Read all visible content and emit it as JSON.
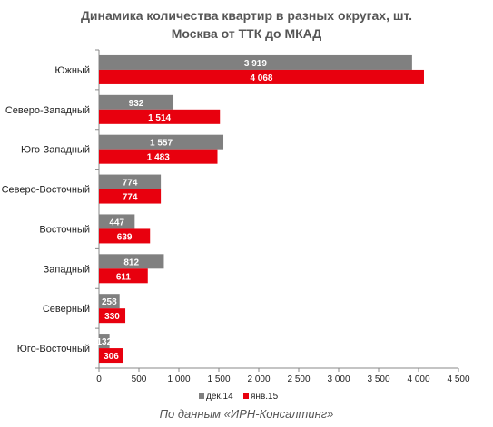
{
  "title_line1": "Динамика количества квартир в разных округах, шт.",
  "title_line2": "Москва от ТТК до МКАД",
  "source": "По данным «ИРН-Консалтинг»",
  "colors": {
    "dec14": "#808080",
    "jan15": "#e8000e",
    "axis": "#888888"
  },
  "chart_data": {
    "type": "bar",
    "orientation": "horizontal",
    "title": "Динамика количества квартир в разных округах, шт. Москва от ТТК до МКАД",
    "categories": [
      "Южный",
      "Северо-Западный",
      "Юго-Западный",
      "Северо-Восточный",
      "Восточный",
      "Западный",
      "Северный",
      "Юго-Восточный"
    ],
    "series": [
      {
        "name": "дек.14",
        "values": [
          3919,
          932,
          1557,
          774,
          447,
          812,
          258,
          132
        ],
        "labels": [
          "3 919",
          "932",
          "1 557",
          "774",
          "447",
          "812",
          "258",
          "132"
        ]
      },
      {
        "name": "янв.15",
        "values": [
          4068,
          1514,
          1483,
          774,
          639,
          611,
          330,
          306
        ],
        "labels": [
          "4 068",
          "1 514",
          "1 483",
          "774",
          "639",
          "611",
          "330",
          "306"
        ]
      }
    ],
    "xlim": [
      0,
      4500
    ],
    "x_ticks": [
      0,
      500,
      1000,
      1500,
      2000,
      2500,
      3000,
      3500,
      4000,
      4500
    ],
    "x_tick_labels": [
      "0",
      "500",
      "1 000",
      "1 500",
      "2 000",
      "2 500",
      "3 000",
      "3 500",
      "4 000",
      "4 500"
    ],
    "grid": false,
    "legend_position": "bottom"
  }
}
